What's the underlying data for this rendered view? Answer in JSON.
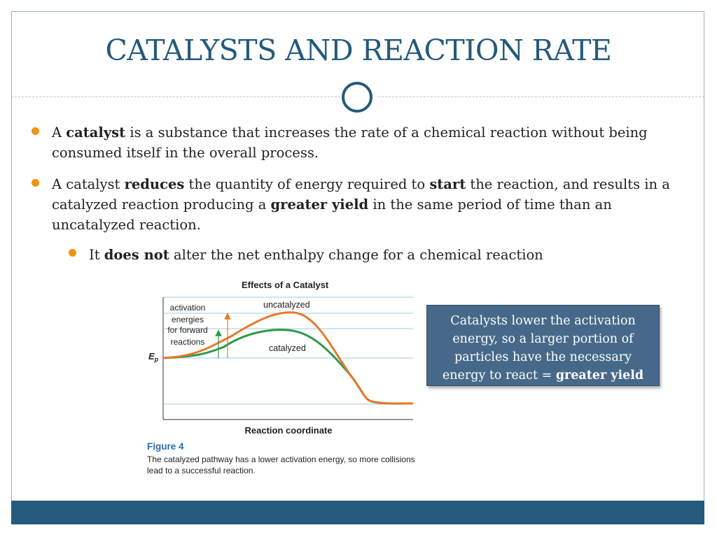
{
  "slide": {
    "title": "CATALYSTS AND REACTION RATE"
  },
  "bullets": {
    "b1": {
      "pre": "A ",
      "bold1": "catalyst",
      "post": " is a substance that increases the rate of a chemical reaction without being consumed itself in the overall process."
    },
    "b2": {
      "pre": "A catalyst ",
      "bold1": "reduces",
      "mid1": " the quantity of energy required to ",
      "bold2": "start",
      "mid2": " the reaction, and results in a catalyzed reaction producing a ",
      "bold3": "greater yield",
      "post": " in the same period of time than an uncatalyzed reaction."
    },
    "b3": {
      "pre": "It ",
      "bold1": "does not",
      "post": " alter the net enthalpy change for a chemical reaction"
    }
  },
  "figure": {
    "title": "Effects of a Catalyst",
    "caption_head": "Figure 4",
    "caption": "The catalyzed pathway has a lower activation energy, so more collisions lead to a successful reaction."
  },
  "chart_data": {
    "type": "line",
    "title": "Effects of a Catalyst",
    "xlabel": "Reaction coordinate",
    "ylabel": "Ep",
    "series": [
      {
        "name": "uncatalyzed",
        "color": "#e8782a"
      },
      {
        "name": "catalyzed",
        "color": "#2c9a47"
      }
    ],
    "annotations": [
      "activation",
      "energies",
      "for forward",
      "reactions"
    ],
    "grid": true
  },
  "callout": {
    "text": "Catalysts lower the activation energy, so a larger portion of particles have the necessary energy to react = ",
    "bold": "greater yield"
  },
  "colors": {
    "accent": "#245a7c",
    "bullet": "#f29411",
    "callout_bg": "#466989"
  }
}
